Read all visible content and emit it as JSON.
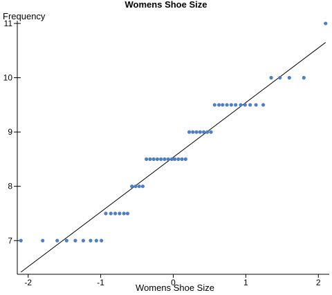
{
  "chart_data": {
    "type": "scatter",
    "title": "Womens Shoe Size",
    "xlabel": "Womens Shoe Size",
    "ylabel": "Frequency",
    "xlim": [
      -2.15,
      2.15
    ],
    "ylim": [
      6.38,
      11.05
    ],
    "xticks": [
      -2,
      -1,
      0,
      1,
      2
    ],
    "xtick_labels": [
      "-2",
      "-1",
      "0",
      "1",
      "2"
    ],
    "yticks": [
      7,
      8,
      9,
      10,
      11
    ],
    "ytick_labels": [
      "7",
      "8",
      "9",
      "10",
      "11"
    ],
    "grid": false,
    "point_color": "#4e7fc2",
    "fit_line": {
      "x": [
        -2.1,
        2.1
      ],
      "y": [
        6.42,
        10.65
      ]
    },
    "points": [
      [
        -2.1,
        7
      ],
      [
        -1.8,
        7
      ],
      [
        -1.6,
        7
      ],
      [
        -1.47,
        7
      ],
      [
        -1.35,
        7
      ],
      [
        -1.24,
        7
      ],
      [
        -1.14,
        7
      ],
      [
        -1.06,
        7
      ],
      [
        -0.99,
        7
      ],
      [
        -0.93,
        7.5
      ],
      [
        -0.86,
        7.5
      ],
      [
        -0.8,
        7.5
      ],
      [
        -0.74,
        7.5
      ],
      [
        -0.68,
        7.5
      ],
      [
        -0.63,
        7.5
      ],
      [
        -0.57,
        8
      ],
      [
        -0.52,
        8
      ],
      [
        -0.47,
        8
      ],
      [
        -0.42,
        8
      ],
      [
        -0.37,
        8.5
      ],
      [
        -0.32,
        8.5
      ],
      [
        -0.27,
        8.5
      ],
      [
        -0.22,
        8.5
      ],
      [
        -0.17,
        8.5
      ],
      [
        -0.12,
        8.5
      ],
      [
        -0.07,
        8.5
      ],
      [
        -0.02,
        8.5
      ],
      [
        0.02,
        8.5
      ],
      [
        0.07,
        8.5
      ],
      [
        0.12,
        8.5
      ],
      [
        0.17,
        8.5
      ],
      [
        0.22,
        9
      ],
      [
        0.27,
        9
      ],
      [
        0.32,
        9
      ],
      [
        0.37,
        9
      ],
      [
        0.42,
        9
      ],
      [
        0.47,
        9
      ],
      [
        0.52,
        9
      ],
      [
        0.57,
        9.5
      ],
      [
        0.63,
        9.5
      ],
      [
        0.68,
        9.5
      ],
      [
        0.74,
        9.5
      ],
      [
        0.8,
        9.5
      ],
      [
        0.86,
        9.5
      ],
      [
        0.93,
        9.5
      ],
      [
        0.99,
        9.5
      ],
      [
        1.06,
        9.5
      ],
      [
        1.14,
        9.5
      ],
      [
        1.24,
        9.5
      ],
      [
        1.35,
        10
      ],
      [
        1.47,
        10
      ],
      [
        1.6,
        10
      ],
      [
        1.8,
        10
      ],
      [
        2.1,
        11
      ]
    ]
  }
}
